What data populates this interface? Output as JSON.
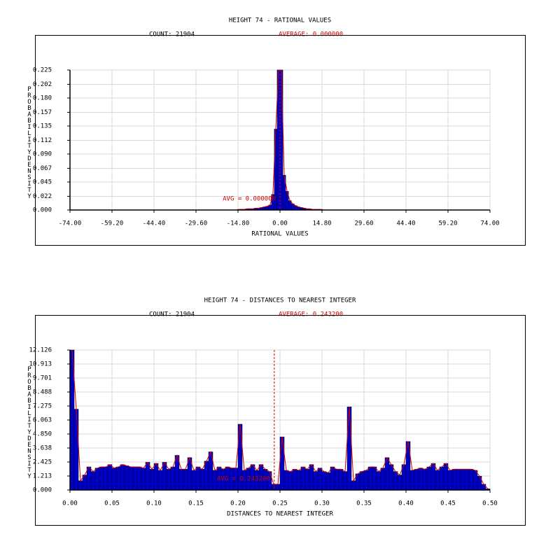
{
  "chart_data": [
    {
      "type": "histogram",
      "title": "HEIGHT 74 - RATIONAL VALUES",
      "count_label": "COUNT: 21904",
      "average_label": "AVERAGE: 0.000000",
      "avg_annotation": "AVG = 0.000000",
      "average": 0,
      "x_label": "RATIONAL VALUES",
      "y_label": "PROBABILITY DENSITY",
      "color": "#0000cc",
      "line_color": "#cc0000",
      "grid": true,
      "xlim": [
        -74,
        74
      ],
      "ylim": [
        0,
        0.225
      ],
      "xticks": [
        {
          "value": -74,
          "label": "-74.00"
        },
        {
          "value": -59.2,
          "label": "-59.20"
        },
        {
          "value": -44.4,
          "label": "-44.40"
        },
        {
          "value": -29.6,
          "label": "-29.60"
        },
        {
          "value": -14.8,
          "label": "-14.80"
        },
        {
          "value": 0,
          "label": "0.00"
        },
        {
          "value": 14.8,
          "label": "14.80"
        },
        {
          "value": 29.6,
          "label": "29.60"
        },
        {
          "value": 44.4,
          "label": "44.40"
        },
        {
          "value": 59.2,
          "label": "59.20"
        },
        {
          "value": 74,
          "label": "74.00"
        }
      ],
      "yticks": [
        {
          "value": 0,
          "label": "0.000"
        },
        0.022,
        0.045,
        0.067,
        {
          "value": 0.09,
          "label": "0.090"
        },
        0.112,
        0.135,
        0.157,
        {
          "value": 0.18,
          "label": "0.180"
        },
        0.202,
        0.225
      ],
      "bins": [
        -15,
        -14,
        -13,
        -12,
        -11,
        -10,
        -9,
        -8,
        -7,
        -6,
        -5,
        -4,
        -3,
        -2,
        -1,
        0,
        1,
        2,
        3,
        4,
        5,
        6,
        7,
        8,
        9,
        10,
        11,
        12,
        13,
        14,
        15
      ],
      "values": [
        0.001,
        0.001,
        0.001,
        0.002,
        0.002,
        0.002,
        0.003,
        0.003,
        0.004,
        0.005,
        0.006,
        0.008,
        0.025,
        0.13,
        0.225,
        0.225,
        0.056,
        0.03,
        0.015,
        0.01,
        0.007,
        0.005,
        0.004,
        0.003,
        0.002,
        0.002,
        0.001,
        0.001,
        0.001,
        0.001
      ]
    },
    {
      "type": "histogram",
      "title": "HEIGHT 74 - DISTANCES TO NEAREST INTEGER",
      "count_label": "COUNT: 21904",
      "average_label": "AVERAGE: 0.243200",
      "avg_annotation": "AVG = 0.243200",
      "average": 0.2432,
      "x_label": "DISTANCES TO NEAREST INTEGER",
      "y_label": "PROBABILITY DENSITY",
      "color": "#0000cc",
      "line_color": "#cc0000",
      "grid": true,
      "xlim": [
        0,
        0.5
      ],
      "ylim": [
        0,
        12.126
      ],
      "xticks": [
        {
          "value": 0,
          "label": "0.00"
        },
        0.05,
        {
          "value": 0.1,
          "label": "0.10"
        },
        0.15,
        {
          "value": 0.2,
          "label": "0.20"
        },
        0.25,
        {
          "value": 0.3,
          "label": "0.30"
        },
        0.35,
        {
          "value": 0.4,
          "label": "0.40"
        },
        0.45,
        {
          "value": 0.5,
          "label": "0.50"
        }
      ],
      "yticks": [
        {
          "value": 0,
          "label": "0.000"
        },
        1.213,
        2.425,
        3.638,
        {
          "value": 4.85,
          "label": "4.850"
        },
        6.063,
        7.275,
        8.488,
        9.701,
        10.913,
        12.126
      ],
      "bins": [
        0,
        0.005,
        0.01,
        0.015,
        0.02,
        0.025,
        0.03,
        0.035,
        0.04,
        0.045,
        0.05,
        0.055,
        0.06,
        0.065,
        0.07,
        0.075,
        0.08,
        0.085,
        0.09,
        0.095,
        0.1,
        0.105,
        0.11,
        0.115,
        0.12,
        0.125,
        0.13,
        0.135,
        0.14,
        0.145,
        0.15,
        0.155,
        0.16,
        0.165,
        0.17,
        0.175,
        0.18,
        0.185,
        0.19,
        0.195,
        0.2,
        0.205,
        0.21,
        0.215,
        0.22,
        0.225,
        0.23,
        0.235,
        0.24,
        0.245,
        0.25,
        0.255,
        0.26,
        0.265,
        0.27,
        0.275,
        0.28,
        0.285,
        0.29,
        0.295,
        0.3,
        0.305,
        0.31,
        0.315,
        0.32,
        0.325,
        0.33,
        0.335,
        0.34,
        0.345,
        0.35,
        0.355,
        0.36,
        0.365,
        0.37,
        0.375,
        0.38,
        0.385,
        0.39,
        0.395,
        0.4,
        0.405,
        0.41,
        0.415,
        0.42,
        0.425,
        0.43,
        0.435,
        0.44,
        0.445,
        0.45,
        0.455,
        0.46,
        0.465,
        0.47,
        0.475,
        0.48,
        0.485,
        0.49,
        0.495,
        0.5
      ],
      "values": [
        12.126,
        7.0,
        0.8,
        1.3,
        2.0,
        1.6,
        1.9,
        2.0,
        2.0,
        2.2,
        1.9,
        2.0,
        2.2,
        2.1,
        2.0,
        2.0,
        2.0,
        1.9,
        2.4,
        1.8,
        2.3,
        1.7,
        2.4,
        1.8,
        2.0,
        3.0,
        1.8,
        1.8,
        2.8,
        1.7,
        2.0,
        1.8,
        2.5,
        3.3,
        1.7,
        2.0,
        1.8,
        2.0,
        1.9,
        1.9,
        5.7,
        1.7,
        1.9,
        2.2,
        1.7,
        2.2,
        1.8,
        1.6,
        0.5,
        0.5,
        4.6,
        1.7,
        1.6,
        1.8,
        1.7,
        2.0,
        1.8,
        2.2,
        1.6,
        1.9,
        1.6,
        1.5,
        2.0,
        1.8,
        1.8,
        1.6,
        7.2,
        0.8,
        1.4,
        1.6,
        1.7,
        2.0,
        2.0,
        1.6,
        1.9,
        2.8,
        2.2,
        1.6,
        1.3,
        2.2,
        4.2,
        1.7,
        1.8,
        1.9,
        1.8,
        2.0,
        2.3,
        1.7,
        2.0,
        2.3,
        1.7,
        1.8,
        1.8,
        1.8,
        1.8,
        1.8,
        1.7,
        1.2,
        0.5,
        0.1
      ]
    }
  ]
}
